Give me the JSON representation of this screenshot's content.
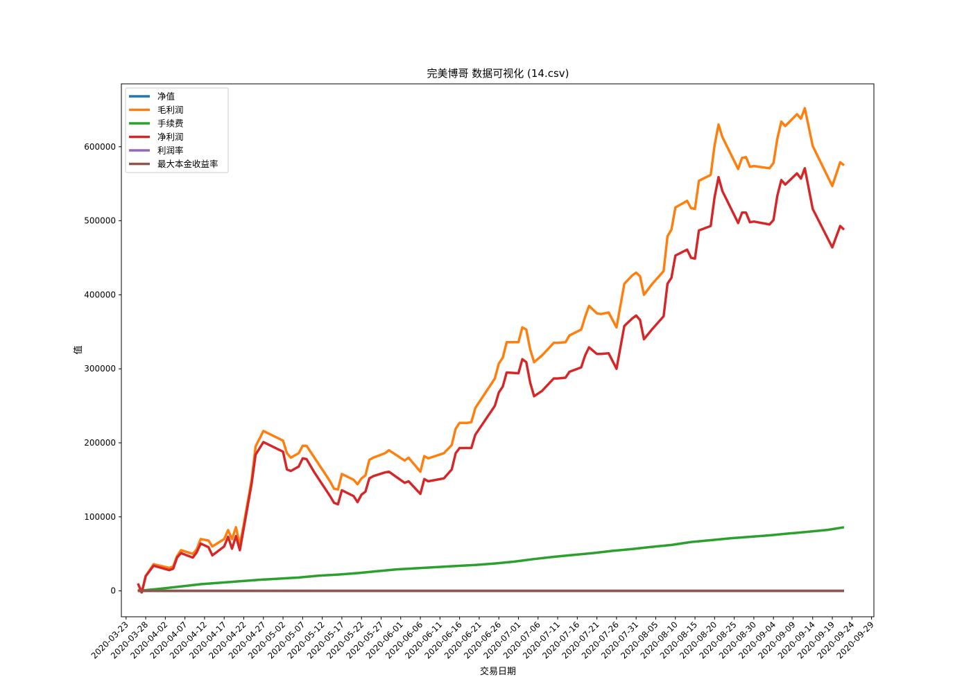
{
  "chart_data": {
    "type": "line",
    "title": "完美博哥 数据可视化 (14.csv)",
    "xlabel": "交易日期",
    "ylabel": "值",
    "x_ticks": [
      "2020-03-23",
      "2020-03-28",
      "2020-04-02",
      "2020-04-07",
      "2020-04-12",
      "2020-04-17",
      "2020-04-22",
      "2020-04-27",
      "2020-05-02",
      "2020-05-07",
      "2020-05-12",
      "2020-05-17",
      "2020-05-22",
      "2020-05-27",
      "2020-06-01",
      "2020-06-06",
      "2020-06-11",
      "2020-06-16",
      "2020-06-21",
      "2020-06-26",
      "2020-07-01",
      "2020-07-06",
      "2020-07-11",
      "2020-07-16",
      "2020-07-21",
      "2020-07-26",
      "2020-07-31",
      "2020-08-05",
      "2020-08-10",
      "2020-08-15",
      "2020-08-20",
      "2020-08-25",
      "2020-08-30",
      "2020-09-04",
      "2020-09-09",
      "2020-09-14",
      "2020-09-19",
      "2020-09-24",
      "2020-09-29"
    ],
    "y_ticks": [
      0,
      100000,
      200000,
      300000,
      400000,
      500000,
      600000
    ],
    "y_tick_labels": [
      "0",
      "100000",
      "200000",
      "300000",
      "400000",
      "500000",
      "600000"
    ],
    "xlim": [
      "2020-03-23",
      "2020-09-29"
    ],
    "ylim": [
      -35000,
      685000
    ],
    "grid": false,
    "legend_position": "top-left",
    "series": [
      {
        "name": "净值",
        "color": "#1f77b4",
        "x": [
          "2020-03-26",
          "2020-09-22"
        ],
        "values": [
          1.0,
          1.0
        ]
      },
      {
        "name": "毛利润",
        "color": "#ff7f0e",
        "x": [
          "2020-03-26",
          "2020-03-27",
          "2020-03-28",
          "2020-03-30",
          "2020-04-03",
          "2020-04-04",
          "2020-04-05",
          "2020-04-06",
          "2020-04-09",
          "2020-04-10",
          "2020-04-11",
          "2020-04-13",
          "2020-04-14",
          "2020-04-17",
          "2020-04-18",
          "2020-04-19",
          "2020-04-20",
          "2020-04-21",
          "2020-04-22",
          "2020-04-24",
          "2020-04-25",
          "2020-04-27",
          "2020-05-02",
          "2020-05-03",
          "2020-05-04",
          "2020-05-06",
          "2020-05-07",
          "2020-05-08",
          "2020-05-10",
          "2020-05-14",
          "2020-05-15",
          "2020-05-16",
          "2020-05-17",
          "2020-05-20",
          "2020-05-21",
          "2020-05-22",
          "2020-05-23",
          "2020-05-24",
          "2020-05-25",
          "2020-05-28",
          "2020-05-29",
          "2020-06-02",
          "2020-06-03",
          "2020-06-06",
          "2020-06-07",
          "2020-06-08",
          "2020-06-12",
          "2020-06-14",
          "2020-06-15",
          "2020-06-16",
          "2020-06-18",
          "2020-06-19",
          "2020-06-20",
          "2020-06-25",
          "2020-06-26",
          "2020-06-27",
          "2020-06-28",
          "2020-07-01",
          "2020-07-02",
          "2020-07-03",
          "2020-07-04",
          "2020-07-05",
          "2020-07-07",
          "2020-07-10",
          "2020-07-11",
          "2020-07-13",
          "2020-07-14",
          "2020-07-17",
          "2020-07-18",
          "2020-07-19",
          "2020-07-21",
          "2020-07-22",
          "2020-07-24",
          "2020-07-26",
          "2020-07-28",
          "2020-07-30",
          "2020-07-31",
          "2020-08-01",
          "2020-08-02",
          "2020-08-04",
          "2020-08-07",
          "2020-08-08",
          "2020-08-09",
          "2020-08-10",
          "2020-08-13",
          "2020-08-14",
          "2020-08-15",
          "2020-08-16",
          "2020-08-19",
          "2020-08-20",
          "2020-08-21",
          "2020-08-22",
          "2020-08-26",
          "2020-08-27",
          "2020-08-28",
          "2020-08-29",
          "2020-08-30",
          "2020-09-03",
          "2020-09-04",
          "2020-09-05",
          "2020-09-06",
          "2020-09-07",
          "2020-09-10",
          "2020-09-11",
          "2020-09-12",
          "2020-09-14",
          "2020-09-19",
          "2020-09-21",
          "2020-09-22"
        ],
        "values": [
          2000,
          -2000,
          20000,
          36000,
          31000,
          33000,
          47000,
          55000,
          50000,
          56000,
          70000,
          68000,
          60000,
          70000,
          82000,
          70000,
          86000,
          62000,
          90000,
          150000,
          195000,
          216000,
          203000,
          186000,
          180000,
          186000,
          196000,
          196000,
          180000,
          148000,
          138000,
          137000,
          158000,
          150000,
          144000,
          152000,
          156000,
          177000,
          180000,
          186000,
          190000,
          176000,
          180000,
          161000,
          182000,
          179000,
          186000,
          197000,
          219000,
          227000,
          227000,
          228000,
          247000,
          287000,
          307000,
          315000,
          336000,
          336000,
          356000,
          353000,
          326000,
          309000,
          318000,
          335000,
          335000,
          336000,
          345000,
          353000,
          370000,
          385000,
          375000,
          374000,
          376000,
          356000,
          415000,
          426000,
          430000,
          425000,
          400000,
          414000,
          432000,
          479000,
          488000,
          518000,
          527000,
          517000,
          516000,
          554000,
          562000,
          602000,
          630000,
          613000,
          570000,
          585000,
          586000,
          573000,
          574000,
          571000,
          578000,
          611000,
          634000,
          628000,
          644000,
          638000,
          652000,
          601000,
          547000,
          579000,
          575000
        ]
      },
      {
        "name": "手续费",
        "color": "#2ca02c",
        "x": [
          "2020-03-26",
          "2020-04-01",
          "2020-04-06",
          "2020-04-11",
          "2020-04-16",
          "2020-04-21",
          "2020-04-26",
          "2020-05-01",
          "2020-05-06",
          "2020-05-11",
          "2020-05-16",
          "2020-05-21",
          "2020-05-26",
          "2020-05-31",
          "2020-06-05",
          "2020-06-10",
          "2020-06-15",
          "2020-06-20",
          "2020-06-25",
          "2020-06-30",
          "2020-07-05",
          "2020-07-10",
          "2020-07-15",
          "2020-07-20",
          "2020-07-25",
          "2020-07-30",
          "2020-08-04",
          "2020-08-09",
          "2020-08-14",
          "2020-08-19",
          "2020-08-24",
          "2020-08-29",
          "2020-09-03",
          "2020-09-08",
          "2020-09-13",
          "2020-09-18",
          "2020-09-22"
        ],
        "values": [
          0,
          3000,
          6000,
          9000,
          11000,
          13000,
          15000,
          16500,
          18000,
          20500,
          22000,
          24000,
          26500,
          29000,
          30500,
          32000,
          33500,
          35000,
          37000,
          39500,
          43000,
          46000,
          48500,
          51000,
          54000,
          56500,
          59500,
          62000,
          66000,
          68500,
          71000,
          73000,
          75000,
          77500,
          80000,
          82500,
          86000
        ]
      },
      {
        "name": "净利润",
        "color": "#d62728",
        "x": [
          "2020-03-26",
          "2020-03-27",
          "2020-03-28",
          "2020-03-30",
          "2020-04-03",
          "2020-04-04",
          "2020-04-05",
          "2020-04-06",
          "2020-04-09",
          "2020-04-10",
          "2020-04-11",
          "2020-04-13",
          "2020-04-14",
          "2020-04-17",
          "2020-04-18",
          "2020-04-19",
          "2020-04-20",
          "2020-04-21",
          "2020-04-22",
          "2020-04-24",
          "2020-04-25",
          "2020-04-27",
          "2020-05-02",
          "2020-05-03",
          "2020-05-04",
          "2020-05-06",
          "2020-05-07",
          "2020-05-08",
          "2020-05-10",
          "2020-05-14",
          "2020-05-15",
          "2020-05-16",
          "2020-05-17",
          "2020-05-20",
          "2020-05-21",
          "2020-05-22",
          "2020-05-23",
          "2020-05-24",
          "2020-05-25",
          "2020-05-28",
          "2020-05-29",
          "2020-06-02",
          "2020-06-03",
          "2020-06-06",
          "2020-06-07",
          "2020-06-08",
          "2020-06-12",
          "2020-06-14",
          "2020-06-15",
          "2020-06-16",
          "2020-06-18",
          "2020-06-19",
          "2020-06-20",
          "2020-06-25",
          "2020-06-26",
          "2020-06-27",
          "2020-06-28",
          "2020-07-01",
          "2020-07-02",
          "2020-07-03",
          "2020-07-04",
          "2020-07-05",
          "2020-07-07",
          "2020-07-10",
          "2020-07-11",
          "2020-07-13",
          "2020-07-14",
          "2020-07-17",
          "2020-07-18",
          "2020-07-19",
          "2020-07-21",
          "2020-07-22",
          "2020-07-24",
          "2020-07-26",
          "2020-07-28",
          "2020-07-30",
          "2020-07-31",
          "2020-08-01",
          "2020-08-02",
          "2020-08-04",
          "2020-08-07",
          "2020-08-08",
          "2020-08-09",
          "2020-08-10",
          "2020-08-13",
          "2020-08-14",
          "2020-08-15",
          "2020-08-16",
          "2020-08-19",
          "2020-08-20",
          "2020-08-21",
          "2020-08-22",
          "2020-08-26",
          "2020-08-27",
          "2020-08-28",
          "2020-08-29",
          "2020-08-30",
          "2020-09-03",
          "2020-09-04",
          "2020-09-05",
          "2020-09-06",
          "2020-09-07",
          "2020-09-10",
          "2020-09-11",
          "2020-09-12",
          "2020-09-14",
          "2020-09-19",
          "2020-09-21",
          "2020-09-22"
        ],
        "values": [
          10000,
          -2000,
          20000,
          34000,
          28000,
          30000,
          45000,
          51000,
          45000,
          52000,
          64000,
          59000,
          48000,
          60000,
          73000,
          57000,
          74000,
          55000,
          85000,
          145000,
          184000,
          201000,
          188000,
          164000,
          162000,
          168000,
          179000,
          178000,
          160000,
          128000,
          119000,
          117000,
          136000,
          128000,
          120000,
          130000,
          134000,
          152000,
          155000,
          160000,
          161000,
          146000,
          148000,
          131000,
          151000,
          148000,
          152000,
          164000,
          186000,
          193000,
          193000,
          193000,
          211000,
          250000,
          268000,
          276000,
          295000,
          294000,
          313000,
          309000,
          281000,
          263000,
          270000,
          287000,
          287000,
          288000,
          296000,
          302000,
          318000,
          329000,
          320000,
          320000,
          321000,
          300000,
          358000,
          368000,
          372000,
          366000,
          340000,
          353000,
          371000,
          415000,
          423000,
          453000,
          461000,
          450000,
          449000,
          487000,
          493000,
          532000,
          559000,
          540000,
          497000,
          511000,
          511000,
          498000,
          499000,
          495000,
          501000,
          534000,
          555000,
          549000,
          564000,
          557000,
          571000,
          516000,
          464000,
          493000,
          488000
        ]
      },
      {
        "name": "利润率",
        "color": "#9467bd",
        "x": [
          "2020-03-26",
          "2020-09-22"
        ],
        "values": [
          0.1,
          0.1
        ]
      },
      {
        "name": "最大本金收益率",
        "color": "#8c564b",
        "x": [
          "2020-03-26",
          "2020-09-22"
        ],
        "values": [
          0.2,
          0.2
        ]
      }
    ]
  }
}
